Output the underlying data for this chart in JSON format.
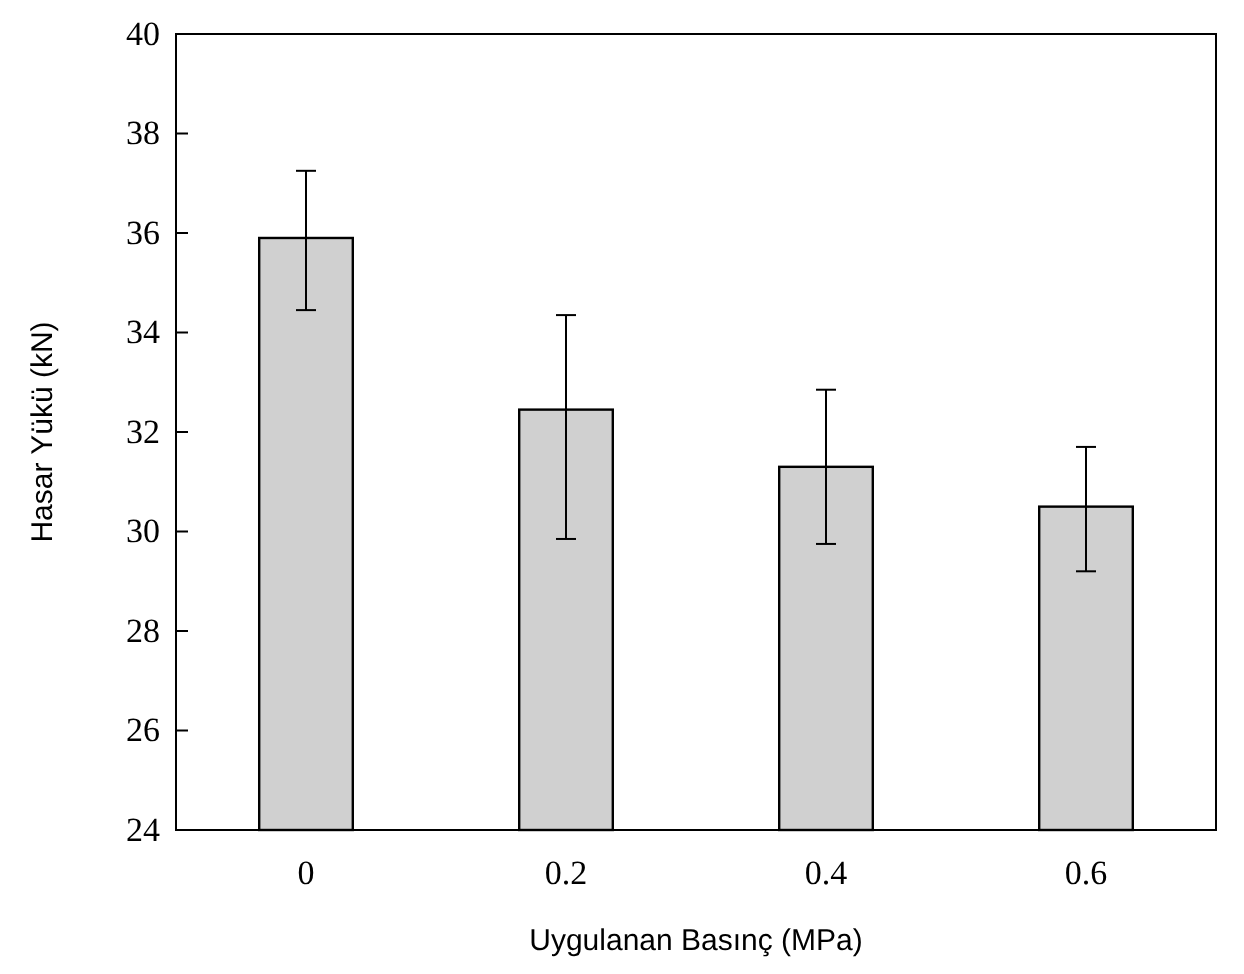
{
  "chart_data": {
    "type": "bar",
    "xlabel": "Uygulanan Basınç (MPa)",
    "ylabel": "Hasar Yükü (kN)",
    "categories": [
      "0",
      "0.2",
      "0.4",
      "0.6"
    ],
    "values": [
      35.9,
      32.45,
      31.3,
      30.5
    ],
    "errors": [
      [
        34.45,
        37.25
      ],
      [
        29.85,
        34.35
      ],
      [
        29.75,
        32.85
      ],
      [
        29.2,
        31.7
      ]
    ],
    "color": "#d0d0d0",
    "ylim": [
      24,
      40
    ],
    "yticks": [
      24,
      26,
      28,
      30,
      32,
      34,
      36,
      38,
      40
    ],
    "grid": false
  }
}
